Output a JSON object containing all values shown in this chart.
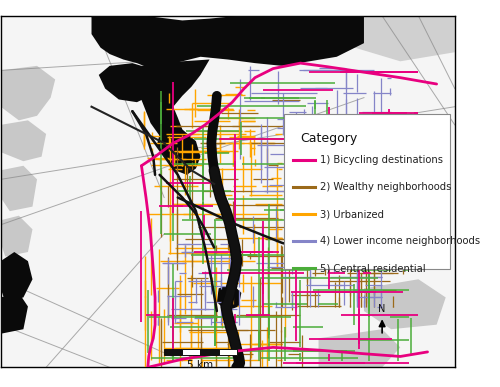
{
  "legend_title": "Category",
  "legend_entries": [
    {
      "label": "1) Bicycling destinations",
      "color": "#E8007F"
    },
    {
      "label": "2) Wealthy neighborhoods",
      "color": "#9B6A1A"
    },
    {
      "label": "3) Urbanized",
      "color": "#FFA500"
    },
    {
      "label": "4) Lower income neighborhoods",
      "color": "#8585C8"
    },
    {
      "label": "5) Central residential",
      "color": "#4BAD3A"
    }
  ],
  "background_color": "#ffffff",
  "fig_width": 5.0,
  "fig_height": 3.87,
  "dpi": 100
}
